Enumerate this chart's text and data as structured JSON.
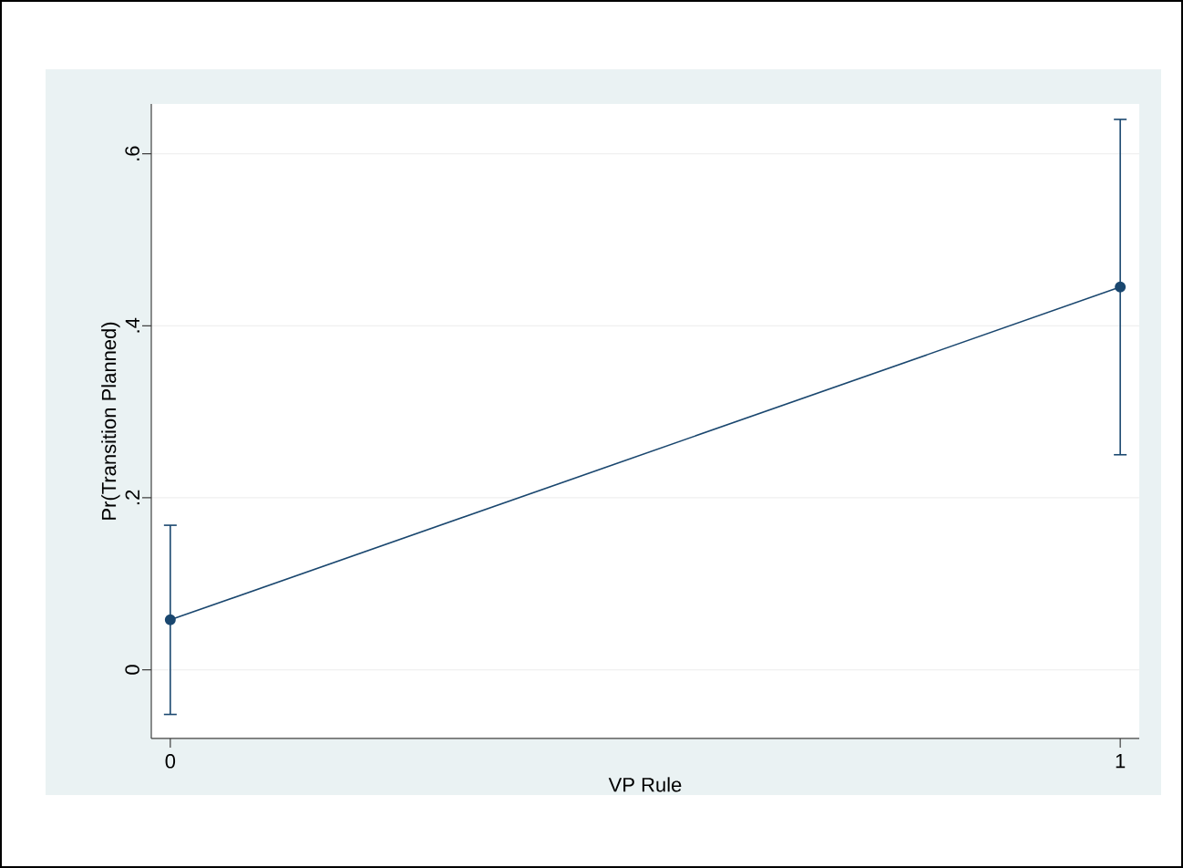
{
  "chart_data": {
    "type": "line",
    "xlabel": "VP Rule",
    "ylabel": "Pr(Transition Planned)",
    "x": [
      0,
      1
    ],
    "series": [
      {
        "color": "#1a476f",
        "values": [
          0.058,
          0.445
        ],
        "errors": [
          0.11,
          0.195
        ]
      }
    ],
    "xlim": [
      -0.02,
      1.02
    ],
    "ylim": [
      -0.08,
      0.658
    ],
    "xticks": [
      0,
      1
    ],
    "yticks": [
      0,
      {
        "value": 0.2,
        "label": ".2"
      },
      {
        "value": 0.4,
        "label": ".4"
      },
      {
        "value": 0.6,
        "label": ".6"
      }
    ],
    "grid": "y",
    "marker": "circle",
    "line_style": "solid"
  }
}
